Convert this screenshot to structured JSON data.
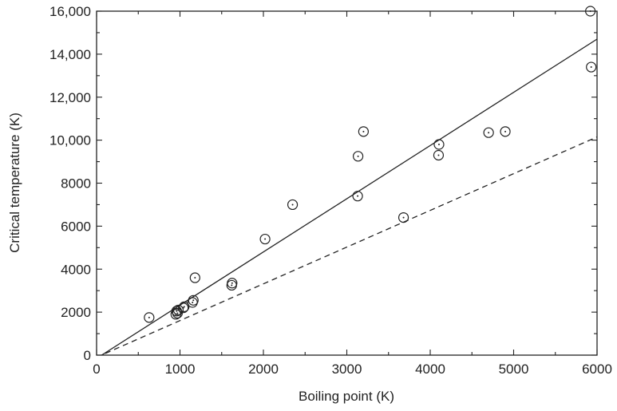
{
  "chart_data": {
    "type": "scatter",
    "title": "",
    "xlabel": "Boiling point (K)",
    "ylabel": "Critical temperature (K)",
    "xlim": [
      0,
      6000
    ],
    "ylim": [
      0,
      16000
    ],
    "grid": false,
    "x_ticks": [
      {
        "value": 0,
        "label": "0"
      },
      {
        "value": 1000,
        "label": "1000"
      },
      {
        "value": 2000,
        "label": "2000"
      },
      {
        "value": 3000,
        "label": "3000"
      },
      {
        "value": 4000,
        "label": "4000"
      },
      {
        "value": 5000,
        "label": "5000"
      },
      {
        "value": 6000,
        "label": "6000"
      }
    ],
    "y_ticks": [
      {
        "value": 0,
        "label": "0"
      },
      {
        "value": 2000,
        "label": "2000"
      },
      {
        "value": 4000,
        "label": "4000"
      },
      {
        "value": 6000,
        "label": "6000"
      },
      {
        "value": 8000,
        "label": "8000"
      },
      {
        "value": 10000,
        "label": "10,000"
      },
      {
        "value": 12000,
        "label": "12,000"
      },
      {
        "value": 14000,
        "label": "14,000"
      },
      {
        "value": 16000,
        "label": "16,000"
      }
    ],
    "points": [
      {
        "x": 630,
        "y": 1750
      },
      {
        "x": 950,
        "y": 1900
      },
      {
        "x": 960,
        "y": 2050
      },
      {
        "x": 970,
        "y": 1950
      },
      {
        "x": 980,
        "y": 2100
      },
      {
        "x": 1040,
        "y": 2200
      },
      {
        "x": 1050,
        "y": 2250
      },
      {
        "x": 1150,
        "y": 2450
      },
      {
        "x": 1160,
        "y": 2550
      },
      {
        "x": 1180,
        "y": 3600
      },
      {
        "x": 1620,
        "y": 3250
      },
      {
        "x": 1625,
        "y": 3350
      },
      {
        "x": 2020,
        "y": 5400
      },
      {
        "x": 2350,
        "y": 7000
      },
      {
        "x": 3130,
        "y": 7400
      },
      {
        "x": 3135,
        "y": 9250
      },
      {
        "x": 3200,
        "y": 10400
      },
      {
        "x": 3680,
        "y": 6400
      },
      {
        "x": 4100,
        "y": 9300
      },
      {
        "x": 4105,
        "y": 9800
      },
      {
        "x": 4700,
        "y": 10350
      },
      {
        "x": 4900,
        "y": 10400
      },
      {
        "x": 5920,
        "y": 16000
      },
      {
        "x": 5930,
        "y": 13400
      }
    ],
    "lines": [
      {
        "style": "solid",
        "from": [
          0,
          -150
        ],
        "to": [
          6000,
          14700
        ]
      },
      {
        "style": "dashed",
        "from": [
          0,
          -100
        ],
        "to": [
          6000,
          10150
        ]
      }
    ],
    "colors": {
      "ink": "#222222",
      "background": "#ffffff"
    }
  }
}
